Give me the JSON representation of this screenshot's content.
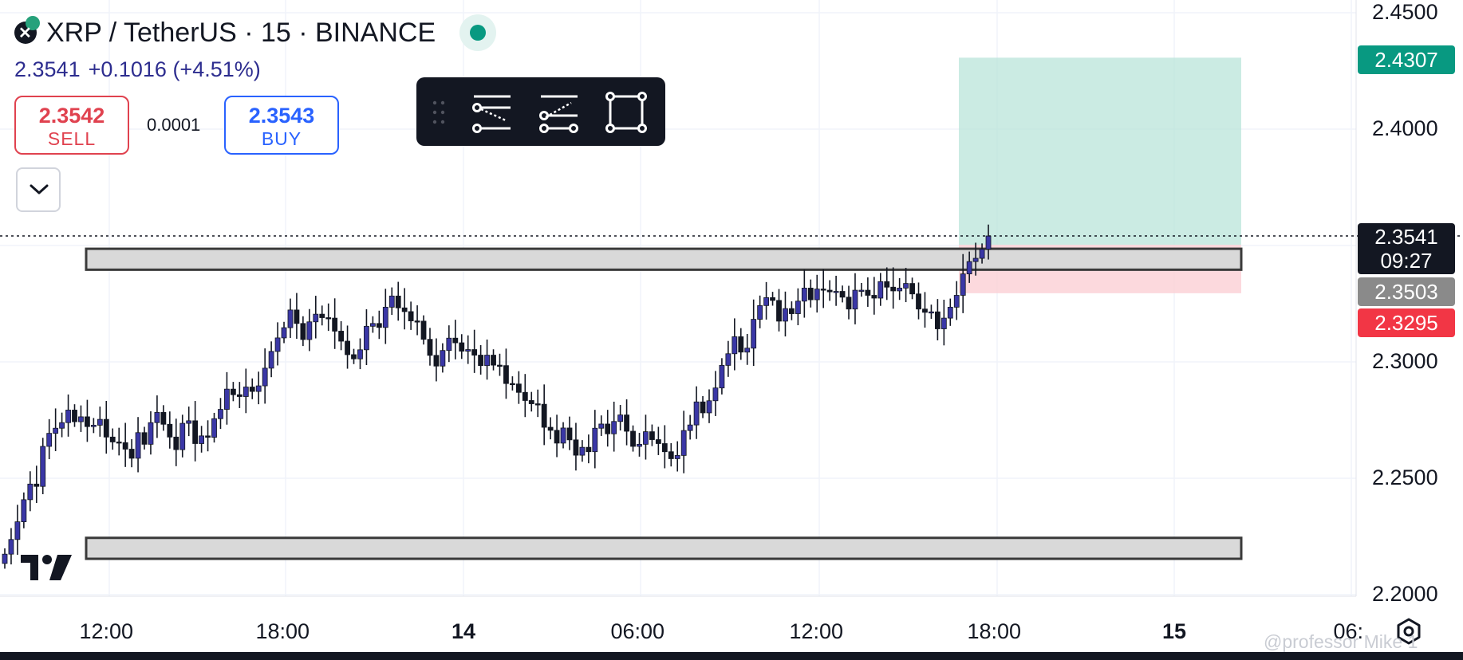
{
  "header": {
    "symbol_title": "XRP / TetherUS · 15 · BINANCE",
    "last_price": "2.3541",
    "change": "+0.1016 (+4.51%)"
  },
  "trade": {
    "sell_price": "2.3542",
    "sell_label": "SELL",
    "spread": "0.0001",
    "buy_price": "2.3543",
    "buy_label": "BUY"
  },
  "price_labels": {
    "target": "2.4307",
    "current_price": "2.3541",
    "countdown": "09:27",
    "entry": "2.3503",
    "stop": "2.3295"
  },
  "colors": {
    "up_candle": "#3a37a6",
    "down_candle": "#131722",
    "target_zone": "#b9e4da",
    "stop_zone": "#fbd0d5",
    "target_label": "#089981",
    "entry_label": "#8a8a8a",
    "stop_label": "#f23645",
    "current_label": "#131722"
  },
  "icons": {
    "logo": "tradingview-logo",
    "settings": "settings-icon",
    "live": "live-status-dot"
  },
  "watermark": "@professor Mike 1",
  "chart_data": {
    "type": "candlestick",
    "ylim": [
      2.19,
      2.455
    ],
    "y_ticks": [
      2.2,
      2.25,
      2.3,
      2.35,
      2.4,
      2.45
    ],
    "y_tick_labels": [
      "2.2000",
      "2.2500",
      "2.3000",
      "",
      "2.4000",
      "2.4500"
    ],
    "x_ticks": [
      {
        "label": "12:00",
        "bold": false
      },
      {
        "label": "18:00",
        "bold": false
      },
      {
        "label": "14",
        "bold": true
      },
      {
        "label": "06:00",
        "bold": false
      },
      {
        "label": "12:00",
        "bold": false
      },
      {
        "label": "18:00",
        "bold": false
      },
      {
        "label": "15",
        "bold": true
      },
      {
        "label": "06:",
        "bold": false
      }
    ],
    "zones": [
      {
        "name": "resistance",
        "low": 2.3396,
        "high": 2.3486
      },
      {
        "name": "support",
        "low": 2.2154,
        "high": 2.2244
      }
    ],
    "position": {
      "side": "long",
      "entry": 2.3503,
      "target": 2.4307,
      "stop": 2.3295
    },
    "current_price": 2.3541,
    "closes": [
      2.2174,
      2.2237,
      2.2313,
      2.2408,
      2.2475,
      2.2465,
      2.2637,
      2.2693,
      2.2715,
      2.2739,
      2.2793,
      2.2743,
      2.2764,
      2.2722,
      2.2728,
      2.2753,
      2.2677,
      2.2656,
      2.2653,
      2.2625,
      2.2586,
      2.2696,
      2.2646,
      2.2739,
      2.2783,
      2.2732,
      2.2677,
      2.2623,
      2.2736,
      2.2747,
      2.2649,
      2.2682,
      2.2676,
      2.2756,
      2.2796,
      2.2883,
      2.2859,
      2.2851,
      2.2892,
      2.2873,
      2.2897,
      2.2973,
      2.3045,
      2.3103,
      2.3147,
      2.3223,
      2.3165,
      2.3096,
      2.3172,
      2.3205,
      2.319,
      2.3188,
      2.3132,
      2.3089,
      2.3031,
      2.3013,
      2.3052,
      2.3153,
      2.3165,
      2.3148,
      2.3235,
      2.3283,
      2.3232,
      2.3216,
      2.3176,
      2.3175,
      2.3097,
      2.3028,
      2.2982,
      2.3049,
      2.3102,
      2.3082,
      2.3046,
      2.3053,
      2.3029,
      2.2984,
      2.3029,
      2.2986,
      2.2984,
      2.2907,
      2.2905,
      2.2869,
      2.2834,
      2.282,
      2.2818,
      2.2719,
      2.2706,
      2.2651,
      2.2716,
      2.2665,
      2.2599,
      2.2633,
      2.2614,
      2.2715,
      2.2733,
      2.2691,
      2.2744,
      2.2772,
      2.2702,
      2.2637,
      2.2646,
      2.27,
      2.2666,
      2.2649,
      2.2614,
      2.2584,
      2.2598,
      2.2705,
      2.2729,
      2.2828,
      2.2781,
      2.2833,
      2.2888,
      2.2985,
      2.3035,
      2.3108,
      2.3042,
      2.3059,
      2.3183,
      2.3242,
      2.3276,
      2.3264,
      2.3175,
      2.3229,
      2.3207,
      2.3261,
      2.3317,
      2.3267,
      2.3313,
      2.3308,
      2.3301,
      2.3303,
      2.3278,
      2.3227,
      2.3308,
      2.3308,
      2.3286,
      2.3274,
      2.3345,
      2.3321,
      2.3305,
      2.3317,
      2.3337,
      2.3292,
      2.3227,
      2.3213,
      2.3215,
      2.3142,
      2.3188,
      2.3235,
      2.3286,
      2.3378,
      2.3431,
      2.3445,
      2.3484,
      2.3541
    ]
  }
}
